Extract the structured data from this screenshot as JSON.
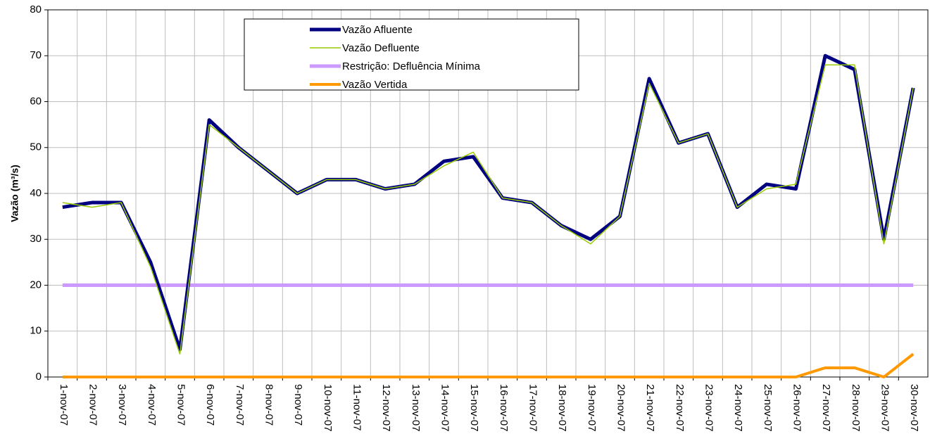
{
  "chart_data": {
    "type": "line",
    "y_label": "Vazão (m³/s)",
    "categories": [
      "1-nov-07",
      "2-nov-07",
      "3-nov-07",
      "4-nov-07",
      "5-nov-07",
      "6-nov-07",
      "7-nov-07",
      "8-nov-07",
      "9-nov-07",
      "10-nov-07",
      "11-nov-07",
      "12-nov-07",
      "13-nov-07",
      "14-nov-07",
      "15-nov-07",
      "16-nov-07",
      "17-nov-07",
      "18-nov-07",
      "19-nov-07",
      "20-nov-07",
      "21-nov-07",
      "22-nov-07",
      "23-nov-07",
      "24-nov-07",
      "25-nov-07",
      "26-nov-07",
      "27-nov-07",
      "28-nov-07",
      "29-nov-07",
      "30-nov-07"
    ],
    "series": [
      {
        "name": "Vazão Afluente",
        "color": "#000080",
        "values": [
          37,
          38,
          38,
          25,
          6,
          56,
          50,
          45,
          40,
          43,
          43,
          41,
          42,
          47,
          48,
          39,
          38,
          33,
          30,
          35,
          65,
          51,
          53,
          37,
          42,
          41,
          70,
          67,
          30,
          63
        ]
      },
      {
        "name": "Vazão Defluente",
        "color": "#99cc00",
        "values": [
          38,
          37,
          38,
          24,
          5,
          55,
          50,
          45,
          40,
          43,
          43,
          41,
          42,
          46,
          49,
          39,
          38,
          33,
          29,
          35,
          64,
          51,
          53,
          37,
          41,
          42,
          68,
          68,
          29,
          63
        ]
      },
      {
        "name": "Restrição: Defluência Mínima",
        "color": "#cc99ff",
        "values": [
          20,
          20,
          20,
          20,
          20,
          20,
          20,
          20,
          20,
          20,
          20,
          20,
          20,
          20,
          20,
          20,
          20,
          20,
          20,
          20,
          20,
          20,
          20,
          20,
          20,
          20,
          20,
          20,
          20,
          20
        ]
      },
      {
        "name": "Vazão Vertida",
        "color": "#ff9900",
        "values": [
          0,
          0,
          0,
          0,
          0,
          0,
          0,
          0,
          0,
          0,
          0,
          0,
          0,
          0,
          0,
          0,
          0,
          0,
          0,
          0,
          0,
          0,
          0,
          0,
          0,
          0,
          2,
          2,
          0,
          5
        ]
      }
    ],
    "ylim": [
      0,
      80
    ],
    "yticks": [
      0,
      10,
      20,
      30,
      40,
      50,
      60,
      70,
      80
    ],
    "grid": true
  }
}
